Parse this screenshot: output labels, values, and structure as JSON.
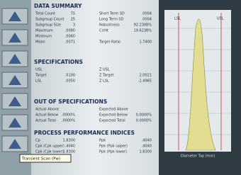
{
  "sections": [
    {
      "title": "DATA SUMMARY",
      "rows": [
        {
          "label": "Total Count",
          "value": "75",
          "label2": "Short Term SD",
          "value2": ".0004"
        },
        {
          "label": "Subgroup Count",
          "value": "25",
          "label2": "Long Term SD",
          "value2": ".0004"
        },
        {
          "label": "Subgroup Size",
          "value": "3",
          "label2": "Robustness",
          "value2": "92.2308%"
        },
        {
          "label": "Maximum",
          "value": ".0080",
          "label2": "Cr/Ht",
          "value2": "19.6238%"
        },
        {
          "label": "Minimum",
          "value": ".0060"
        },
        {
          "label": "Mean",
          "value": ".0071",
          "label2": "Target Ratio",
          "value2": "1.7400"
        }
      ]
    },
    {
      "title": "SPECIFICATIONS",
      "rows": [
        {
          "label": "USL",
          "label2": "Z USL"
        },
        {
          "label": "Target",
          "value": ".0100",
          "label2": "Z Target",
          "value2": "2.0021"
        },
        {
          "label": "LSL",
          "value": ".0050",
          "label2": "Z LSL",
          "value2": "-1.4965"
        }
      ]
    },
    {
      "title": "OUT OF SPECIFICATIONS",
      "rows": [
        {
          "label": "Actual Above",
          "label2": "Expected Above"
        },
        {
          "label": "Actual Below",
          "value": ".0000%",
          "label2": "Expected Below",
          "value2": "0.0000%"
        },
        {
          "label": "Actual Total",
          "value": ".0000%",
          "label2": "Expected Total",
          "value2": "0.0000%"
        }
      ]
    },
    {
      "title": "PROCESS PERFORMANCE INDICES",
      "rows": [
        {
          "label": "Cp",
          "value": "1.8300",
          "label2": "Ppk",
          "value2": ".4040"
        },
        {
          "label": "Cpk (Cpk upper)",
          "value": ".4040",
          "label2": "Ppk (Ppk upper)",
          "value2": ".4040"
        },
        {
          "label": "Cpk (Cpk lower)",
          "value": "1.8300",
          "label2": "Ppk (Ppk lower)",
          "value2": "1.8300"
        }
      ]
    }
  ],
  "tooltip": "Transient Scan (Pw)",
  "chart": {
    "usl": "USL",
    "lsl": "LSL",
    "x_label": "Diameter Top (mm)"
  }
}
